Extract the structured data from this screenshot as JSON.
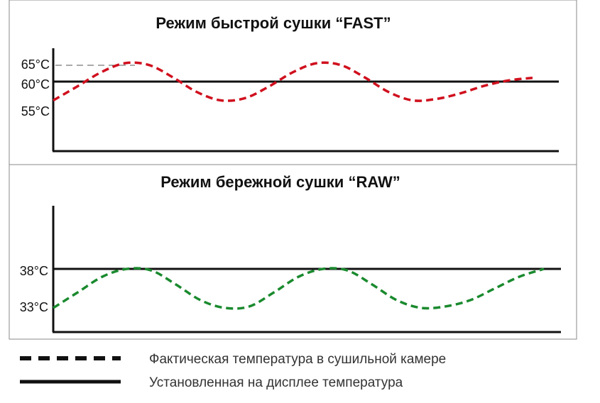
{
  "chart_data": [
    {
      "type": "line",
      "title": "Режим быстрой сушки “FAST”",
      "y_tick_labels": [
        "65°C",
        "60°C",
        "55°C"
      ],
      "y_ticks": [
        65,
        60,
        55
      ],
      "ylim": [
        45,
        75
      ],
      "setpoint": 60,
      "series": [
        {
          "name": "Фактическая температура в сушильной камере",
          "style": "dashed",
          "color": "#d0101e",
          "x": [
            0,
            0.05,
            0.1,
            0.15,
            0.2,
            0.25,
            0.3,
            0.35,
            0.4,
            0.45,
            0.5,
            0.55,
            0.6,
            0.65,
            0.7,
            0.75,
            0.8,
            0.85,
            0.9,
            0.95,
            1.0
          ],
          "values": [
            55.0,
            58.7,
            62.5,
            64.9,
            64.4,
            61.1,
            57.2,
            55.0,
            55.6,
            58.7,
            62.5,
            64.9,
            64.4,
            61.1,
            57.2,
            55.0,
            55.4,
            56.9,
            58.9,
            60.3,
            61.0
          ]
        },
        {
          "name": "Установленная на дисплее температура",
          "style": "solid",
          "color": "#111111",
          "x": [
            0,
            1
          ],
          "values": [
            60,
            60
          ]
        }
      ]
    },
    {
      "type": "line",
      "title": "Режим бережной сушки “RAW”",
      "y_tick_labels": [
        "38°C",
        "33°C"
      ],
      "y_ticks": [
        38,
        33
      ],
      "ylim": [
        20,
        42
      ],
      "setpoint": 38,
      "series": [
        {
          "name": "Фактическая температура в сушильной камере",
          "style": "dashed",
          "color": "#1a8a2e",
          "x": [
            0,
            0.05,
            0.1,
            0.15,
            0.2,
            0.25,
            0.3,
            0.35,
            0.4,
            0.45,
            0.5,
            0.55,
            0.6,
            0.65,
            0.7,
            0.75,
            0.8,
            0.85,
            0.9,
            0.95,
            1.0
          ],
          "values": [
            33.0,
            35.0,
            37.0,
            38.0,
            37.8,
            36.0,
            34.0,
            33.0,
            33.2,
            35.0,
            37.0,
            38.0,
            37.8,
            36.0,
            34.0,
            33.0,
            33.2,
            34.0,
            35.5,
            37.0,
            38.0
          ]
        },
        {
          "name": "Установленная на дисплее температура",
          "style": "solid",
          "color": "#111111",
          "x": [
            0,
            1
          ],
          "values": [
            38,
            38
          ]
        }
      ]
    }
  ],
  "legend": [
    {
      "label": "Фактическая температура в сушильной камере",
      "style": "dashed"
    },
    {
      "label": "Установленная на дисплее температура",
      "style": "solid"
    }
  ],
  "colors": {
    "fast": "#d0101e",
    "raw": "#1a8a2e",
    "setline": "#111111"
  }
}
